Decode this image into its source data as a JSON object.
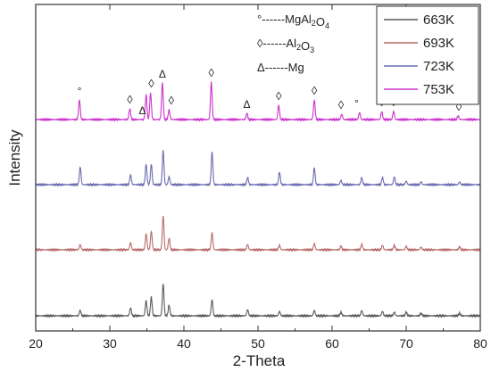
{
  "chart_data": {
    "type": "line",
    "title": "",
    "xlabel": "2-Theta",
    "ylabel": "Intensity",
    "xlim": [
      20,
      80
    ],
    "x_ticks": [
      20,
      30,
      40,
      50,
      60,
      70,
      80
    ],
    "y_ticks_shown": false,
    "grid": false,
    "legend_position": "top-right",
    "series": [
      {
        "name": "663K",
        "color": "#5a5a5a",
        "level": 0,
        "peaks": [
          {
            "x": 26.0,
            "h": 6
          },
          {
            "x": 32.8,
            "h": 9
          },
          {
            "x": 34.9,
            "h": 17
          },
          {
            "x": 35.6,
            "h": 21
          },
          {
            "x": 37.2,
            "h": 36
          },
          {
            "x": 38.0,
            "h": 12
          },
          {
            "x": 43.8,
            "h": 18
          },
          {
            "x": 48.6,
            "h": 7
          },
          {
            "x": 52.9,
            "h": 5
          },
          {
            "x": 57.6,
            "h": 6
          },
          {
            "x": 61.2,
            "h": 4
          },
          {
            "x": 64.0,
            "h": 6
          },
          {
            "x": 66.8,
            "h": 5
          },
          {
            "x": 68.4,
            "h": 4
          },
          {
            "x": 70.0,
            "h": 4
          },
          {
            "x": 72.0,
            "h": 3
          },
          {
            "x": 77.2,
            "h": 3
          }
        ]
      },
      {
        "name": "693K",
        "color": "#b76b6b",
        "level": 1,
        "peaks": [
          {
            "x": 26.0,
            "h": 6
          },
          {
            "x": 32.8,
            "h": 8
          },
          {
            "x": 34.9,
            "h": 18
          },
          {
            "x": 35.6,
            "h": 21
          },
          {
            "x": 37.2,
            "h": 38
          },
          {
            "x": 38.0,
            "h": 13
          },
          {
            "x": 43.8,
            "h": 19
          },
          {
            "x": 48.6,
            "h": 6
          },
          {
            "x": 52.9,
            "h": 5
          },
          {
            "x": 57.6,
            "h": 7
          },
          {
            "x": 61.2,
            "h": 4
          },
          {
            "x": 64.0,
            "h": 6
          },
          {
            "x": 66.8,
            "h": 5
          },
          {
            "x": 68.4,
            "h": 5
          },
          {
            "x": 70.0,
            "h": 4
          },
          {
            "x": 72.0,
            "h": 3
          },
          {
            "x": 77.2,
            "h": 3
          }
        ]
      },
      {
        "name": "723K",
        "color": "#6b6bb0",
        "level": 2,
        "peaks": [
          {
            "x": 26.0,
            "h": 20
          },
          {
            "x": 32.8,
            "h": 11
          },
          {
            "x": 34.9,
            "h": 23
          },
          {
            "x": 35.6,
            "h": 23
          },
          {
            "x": 37.2,
            "h": 38
          },
          {
            "x": 38.0,
            "h": 9
          },
          {
            "x": 43.8,
            "h": 37
          },
          {
            "x": 48.6,
            "h": 8
          },
          {
            "x": 52.9,
            "h": 14
          },
          {
            "x": 57.6,
            "h": 19
          },
          {
            "x": 61.2,
            "h": 5
          },
          {
            "x": 64.0,
            "h": 8
          },
          {
            "x": 66.8,
            "h": 8
          },
          {
            "x": 68.4,
            "h": 9
          },
          {
            "x": 70.0,
            "h": 4
          },
          {
            "x": 72.0,
            "h": 3
          },
          {
            "x": 77.2,
            "h": 3
          }
        ]
      },
      {
        "name": "753K",
        "color": "#cc33cc",
        "level": 3,
        "peaks": [
          {
            "x": 25.9,
            "h": 22
          },
          {
            "x": 32.7,
            "h": 12
          },
          {
            "x": 34.9,
            "h": 28
          },
          {
            "x": 35.5,
            "h": 30
          },
          {
            "x": 37.1,
            "h": 41
          },
          {
            "x": 38.0,
            "h": 11
          },
          {
            "x": 43.7,
            "h": 42
          },
          {
            "x": 48.5,
            "h": 7
          },
          {
            "x": 52.8,
            "h": 16
          },
          {
            "x": 57.6,
            "h": 22
          },
          {
            "x": 61.3,
            "h": 6
          },
          {
            "x": 63.7,
            "h": 8
          },
          {
            "x": 66.7,
            "h": 9
          },
          {
            "x": 68.3,
            "h": 9
          },
          {
            "x": 77.0,
            "h": 4
          }
        ]
      }
    ],
    "phase_key": [
      {
        "symbol": "°",
        "dashes": "------",
        "formula": "MgAl",
        "s1": "2",
        "mid": "O",
        "s2": "4"
      },
      {
        "symbol": "◊",
        "dashes": "------",
        "formula": "Al",
        "s1": "2",
        "mid": "O",
        "s2": "3"
      },
      {
        "symbol": "Δ",
        "dashes": "------",
        "formula": "Mg",
        "s1": "",
        "mid": "",
        "s2": ""
      }
    ],
    "peak_markers": [
      {
        "symbol": "°",
        "x": 25.9
      },
      {
        "symbol": "◊",
        "x": 32.7
      },
      {
        "symbol": "Δ",
        "x": 34.4
      },
      {
        "symbol": "◊",
        "x": 35.6
      },
      {
        "symbol": "Δ",
        "x": 37.1
      },
      {
        "symbol": "◊",
        "x": 38.3
      },
      {
        "symbol": "◊",
        "x": 43.7
      },
      {
        "symbol": "Δ",
        "x": 48.5
      },
      {
        "symbol": "◊",
        "x": 52.8
      },
      {
        "symbol": "◊",
        "x": 57.6
      },
      {
        "symbol": "◊",
        "x": 61.2
      },
      {
        "symbol": "°",
        "x": 63.3
      },
      {
        "symbol": "◊",
        "x": 66.7
      },
      {
        "symbol": "◊",
        "x": 68.3
      },
      {
        "symbol": "◊",
        "x": 77.1
      }
    ]
  }
}
